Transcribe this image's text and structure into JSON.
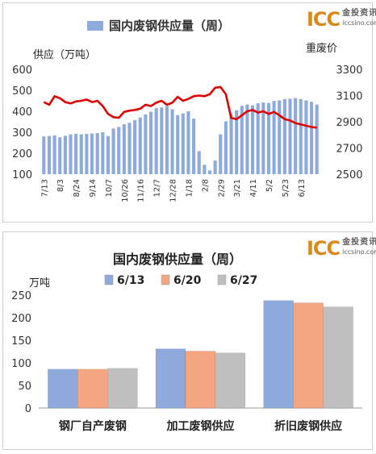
{
  "logo": {
    "mark": "ICC",
    "name_cn": "金投资讯",
    "url": "iccsino.com"
  },
  "colors": {
    "bar": "#8ea9db",
    "bar_top": "#8ea9db",
    "line": "#e00000",
    "s1": "#8ea9db",
    "s2": "#f4a582",
    "s3": "#bfbfbf"
  },
  "chart_data": [
    {
      "type": "bar",
      "title": "国内废钢供应量（周）",
      "legend": [
        "国内废钢供应量（周）"
      ],
      "ylabel": "供应（万吨）",
      "y2label": "重废价",
      "ylim": [
        100,
        600
      ],
      "y2lim": [
        2500,
        3300
      ],
      "yticks": [
        "100",
        "200",
        "300",
        "400",
        "500",
        "600"
      ],
      "y2ticks": [
        "2500",
        "2700",
        "2900",
        "3100",
        "3300"
      ],
      "xtick_labels": [
        "7/13",
        "8/3",
        "8/24",
        "9/14",
        "10/7",
        "10/26",
        "11/16",
        "12/7",
        "12/28",
        "1/18",
        "2/8",
        "2/29",
        "3/21",
        "4/11",
        "5/2",
        "5/23",
        "6/13"
      ],
      "xtick_positions": [
        0,
        3,
        6,
        9,
        12,
        15,
        18,
        21,
        24,
        27,
        30,
        33,
        36,
        39,
        42,
        45,
        48
      ],
      "bar_values": [
        280,
        282,
        285,
        276,
        283,
        290,
        292,
        290,
        292,
        294,
        296,
        300,
        282,
        318,
        325,
        338,
        345,
        358,
        370,
        385,
        398,
        415,
        418,
        425,
        410,
        382,
        390,
        400,
        365,
        210,
        145,
        118,
        165,
        290,
        352,
        388,
        405,
        426,
        432,
        428,
        438,
        442,
        440,
        450,
        452,
        458,
        460,
        463,
        458,
        452,
        445,
        432
      ],
      "line_values": [
        3050,
        3030,
        3095,
        3080,
        3050,
        3040,
        3055,
        3060,
        3070,
        3050,
        3060,
        3020,
        2960,
        2935,
        2930,
        2975,
        2985,
        2990,
        3000,
        3030,
        3020,
        3045,
        3060,
        3030,
        3045,
        3090,
        3060,
        3075,
        3095,
        3100,
        3095,
        3110,
        3160,
        3165,
        3110,
        2930,
        2920,
        2950,
        2980,
        2990,
        2970,
        2980,
        2960,
        2975,
        2950,
        2920,
        2910,
        2890,
        2880,
        2870,
        2860,
        2855
      ]
    },
    {
      "type": "bar",
      "title": "国内废钢供应量（周）",
      "ylabel": "万吨",
      "ylim": [
        0,
        250
      ],
      "yticks": [
        "0",
        "50",
        "100",
        "150",
        "200",
        "250"
      ],
      "categories": [
        "钢厂自产废钢",
        "加工废钢供应",
        "折旧废钢供应"
      ],
      "series": [
        {
          "name": "6/13",
          "values": [
            86,
            131,
            238
          ]
        },
        {
          "name": "6/20",
          "values": [
            86,
            126,
            233
          ]
        },
        {
          "name": "6/27",
          "values": [
            88,
            122,
            224
          ]
        }
      ]
    }
  ]
}
